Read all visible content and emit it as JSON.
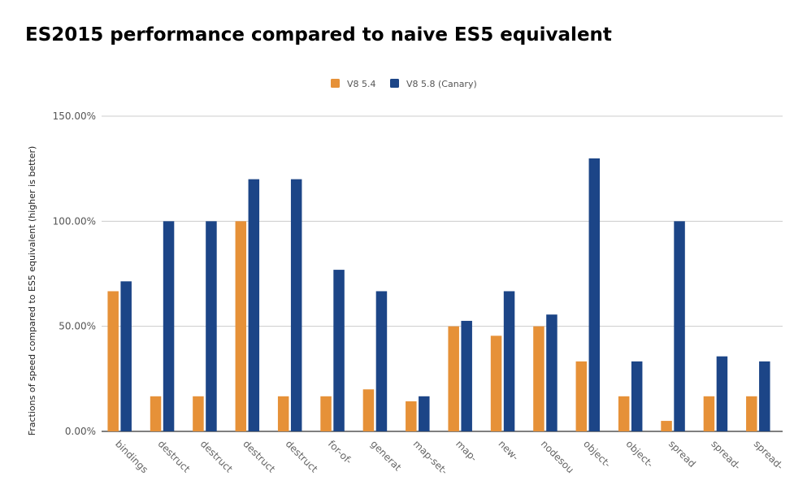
{
  "chart_data": {
    "type": "bar",
    "title": "ES2015 performance compared to naive ES5 equivalent",
    "xlabel": "",
    "ylabel": "Fractions of speed compared to ES5 equivalent (higher is better)",
    "ylim": [
      0,
      150
    ],
    "yticks": [
      0,
      50,
      100,
      150
    ],
    "ytick_labels": [
      "0.00%",
      "50.00%",
      "100.00%",
      "150.00%"
    ],
    "grid": true,
    "legend_position": "top-center",
    "categories": [
      "bindings",
      "destruct",
      "destruct",
      "destruct",
      "destruct",
      "for-of-",
      "generat",
      "map-set-",
      "map-",
      "new-",
      "nodesou",
      "object-",
      "object-",
      "spread",
      "spread-",
      "spread-"
    ],
    "series": [
      {
        "name": "V8 5.4",
        "color": "#E69138",
        "values": [
          66.7,
          16.7,
          16.7,
          100,
          16.7,
          16.7,
          20,
          14.3,
          50,
          45.5,
          50,
          33.3,
          16.7,
          5,
          16.7,
          16.7
        ]
      },
      {
        "name": "V8 5.8 (Canary)",
        "color": "#1C4587",
        "values": [
          71.4,
          100,
          100,
          120,
          120,
          76.9,
          66.7,
          16.7,
          52.6,
          66.7,
          55.6,
          129.9,
          33.3,
          100,
          35.7,
          33.3
        ]
      }
    ]
  }
}
